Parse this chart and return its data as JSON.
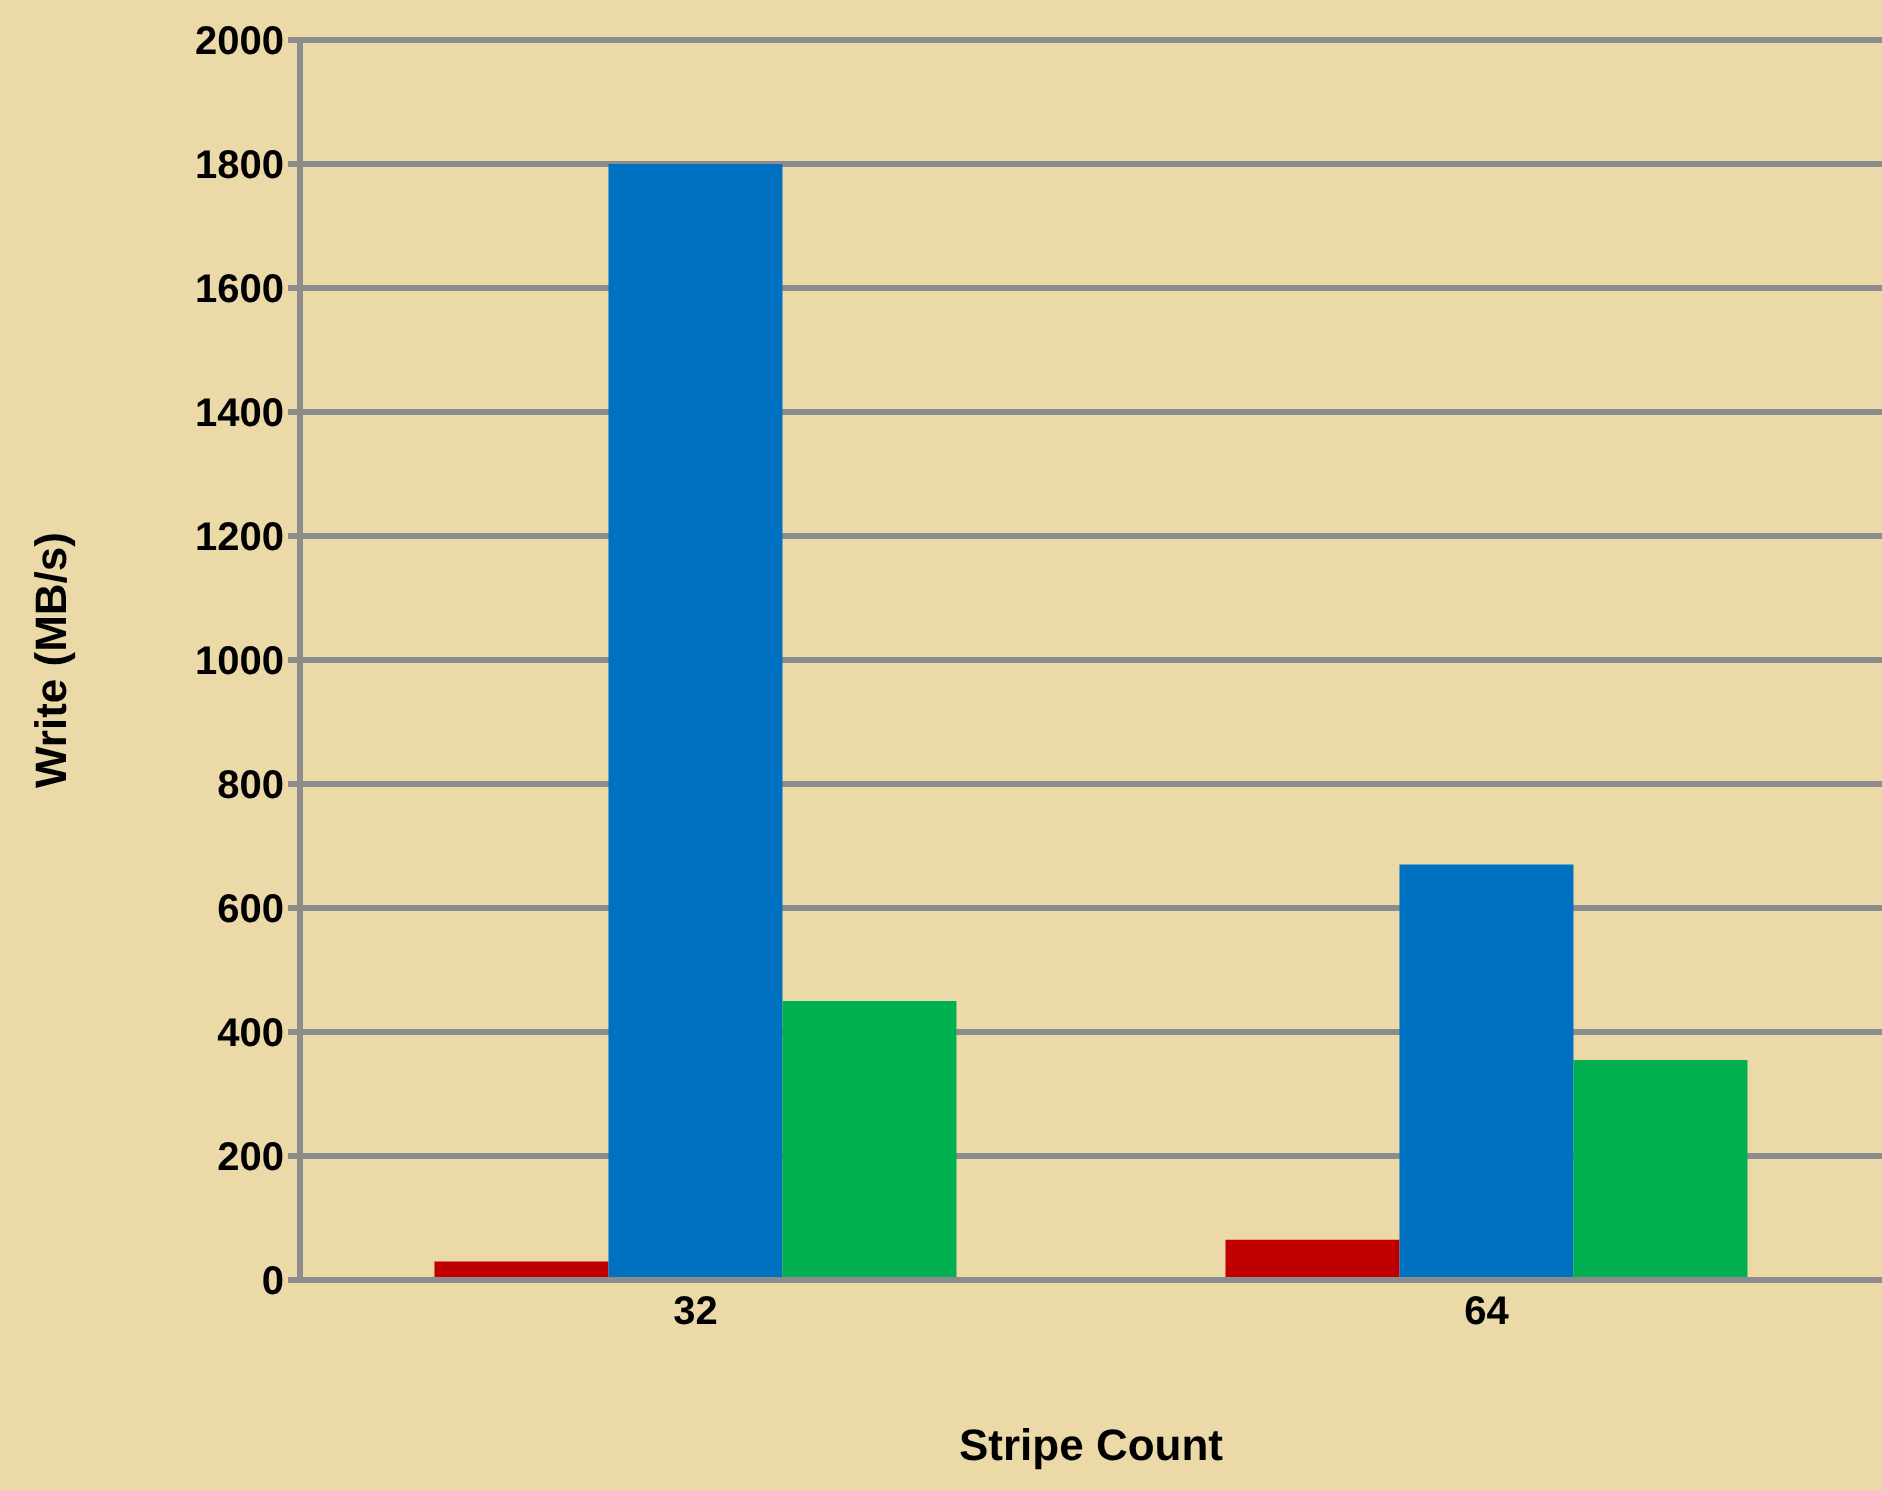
{
  "chart_data": {
    "type": "bar",
    "xlabel": "Stripe Count",
    "ylabel": "Write (MB/s)",
    "categories": [
      "32",
      "64"
    ],
    "series": [
      {
        "color": "#c00000",
        "values": [
          30,
          65
        ]
      },
      {
        "color": "#0070c0",
        "values": [
          1800,
          670
        ]
      },
      {
        "color": "#00b050",
        "values": [
          450,
          355
        ]
      }
    ],
    "ylim": [
      0,
      2000
    ],
    "yticks": [
      0,
      200,
      400,
      600,
      800,
      1000,
      1200,
      1400,
      1600,
      1800,
      2000
    ],
    "grid": "y",
    "legend": false
  }
}
